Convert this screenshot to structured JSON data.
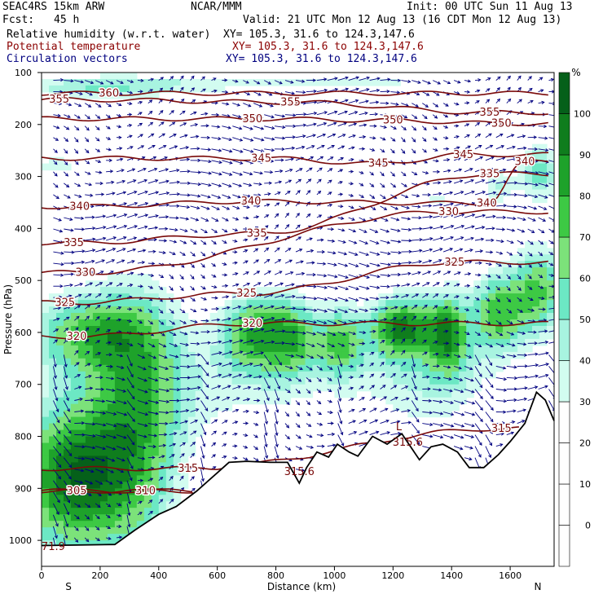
{
  "header": {
    "model": "SEAC4RS 15km ARW",
    "center": "NCAR/MMM",
    "init": "Init: 00 UTC Sun 11 Aug 13",
    "fcst_label": "Fcst:",
    "fcst_value": "45 h",
    "valid": "Valid: 21 UTC Mon 12 Aug 13 (16 CDT Mon 12 Aug 13)",
    "fields": [
      {
        "name": "Relative humidity (w.r.t. water)",
        "xy": "XY= 105.3, 31.6 to 124.3,147.6",
        "color": "#000000"
      },
      {
        "name": "Potential temperature",
        "xy": "XY= 105.3, 31.6 to 124.3,147.6",
        "color": "#8b0000"
      },
      {
        "name": "Circulation vectors",
        "xy": "XY= 105.3, 31.6 to 124.3,147.6",
        "color": "#000080"
      }
    ]
  },
  "chart_data": {
    "type": "heatmap",
    "xlabel": "Distance (km)",
    "ylabel": "Pressure (hPa)",
    "xlim": [
      0,
      1750
    ],
    "ylim": [
      1050,
      100
    ],
    "x_ticks": [
      0,
      200,
      400,
      600,
      800,
      1000,
      1200,
      1400,
      1600
    ],
    "y_ticks": [
      100,
      200,
      300,
      400,
      500,
      600,
      700,
      800,
      900,
      1000
    ],
    "x_end_labels": [
      "S",
      "N"
    ],
    "colorbar": {
      "unit": "%",
      "levels": [
        0,
        10,
        20,
        30,
        40,
        50,
        60,
        70,
        80,
        90,
        100
      ],
      "colors": [
        "#ffffff",
        "#ffffff",
        "#ffffff",
        "#ffffff",
        "#d2fcf0",
        "#a8f4e0",
        "#6ce8c4",
        "#7ce27a",
        "#3dc944",
        "#1ea22a",
        "#0f7d1d",
        "#05601a"
      ]
    },
    "theta_contours": [
      {
        "value": 305,
        "labels": [
          {
            "x": 120,
            "p": 905
          }
        ]
      },
      {
        "value": 310,
        "labels": [
          {
            "x": 355,
            "p": 905
          }
        ]
      },
      {
        "value": 315,
        "labels": [
          {
            "x": 500,
            "p": 862
          },
          {
            "x": 1570,
            "p": 785
          }
        ]
      },
      {
        "value": 320,
        "labels": [
          {
            "x": 120,
            "p": 608
          },
          {
            "x": 720,
            "p": 583
          }
        ]
      },
      {
        "value": 325,
        "labels": [
          {
            "x": 80,
            "p": 543
          },
          {
            "x": 700,
            "p": 525
          },
          {
            "x": 1410,
            "p": 465
          }
        ]
      },
      {
        "value": 330,
        "labels": [
          {
            "x": 150,
            "p": 485
          },
          {
            "x": 1390,
            "p": 368
          }
        ]
      },
      {
        "value": 335,
        "labels": [
          {
            "x": 110,
            "p": 428
          },
          {
            "x": 735,
            "p": 410
          },
          {
            "x": 1530,
            "p": 295
          }
        ]
      },
      {
        "value": 340,
        "labels": [
          {
            "x": 130,
            "p": 358
          },
          {
            "x": 715,
            "p": 348
          },
          {
            "x": 1520,
            "p": 352
          },
          {
            "x": 1650,
            "p": 272
          }
        ]
      },
      {
        "value": 345,
        "labels": [
          {
            "x": 750,
            "p": 265
          },
          {
            "x": 1150,
            "p": 275
          },
          {
            "x": 1440,
            "p": 258
          }
        ]
      },
      {
        "value": 350,
        "labels": [
          {
            "x": 720,
            "p": 189
          },
          {
            "x": 1200,
            "p": 192
          },
          {
            "x": 1570,
            "p": 198
          }
        ]
      },
      {
        "value": 355,
        "labels": [
          {
            "x": 60,
            "p": 152
          },
          {
            "x": 850,
            "p": 157
          },
          {
            "x": 1530,
            "p": 177
          }
        ]
      },
      {
        "value": 360,
        "labels": [
          {
            "x": 230,
            "p": 140
          }
        ]
      }
    ],
    "annotations": [
      {
        "text": "L",
        "x": 1220,
        "p": 782
      },
      {
        "text": "315.6",
        "x": 1250,
        "p": 812
      },
      {
        "text": "315.6",
        "x": 880,
        "p": 868
      },
      {
        "text": "71.9",
        "x": 40,
        "p": 1012
      }
    ],
    "terrain_pressure": [
      {
        "x": 0,
        "p": 1010
      },
      {
        "x": 250,
        "p": 1008
      },
      {
        "x": 320,
        "p": 980
      },
      {
        "x": 400,
        "p": 950
      },
      {
        "x": 460,
        "p": 935
      },
      {
        "x": 530,
        "p": 905
      },
      {
        "x": 600,
        "p": 870
      },
      {
        "x": 640,
        "p": 850
      },
      {
        "x": 700,
        "p": 848
      },
      {
        "x": 780,
        "p": 850
      },
      {
        "x": 840,
        "p": 850
      },
      {
        "x": 880,
        "p": 890
      },
      {
        "x": 905,
        "p": 860
      },
      {
        "x": 940,
        "p": 830
      },
      {
        "x": 980,
        "p": 840
      },
      {
        "x": 1010,
        "p": 815
      },
      {
        "x": 1050,
        "p": 830
      },
      {
        "x": 1080,
        "p": 838
      },
      {
        "x": 1130,
        "p": 800
      },
      {
        "x": 1180,
        "p": 815
      },
      {
        "x": 1230,
        "p": 795
      },
      {
        "x": 1290,
        "p": 845
      },
      {
        "x": 1330,
        "p": 820
      },
      {
        "x": 1370,
        "p": 815
      },
      {
        "x": 1420,
        "p": 830
      },
      {
        "x": 1460,
        "p": 860
      },
      {
        "x": 1510,
        "p": 860
      },
      {
        "x": 1560,
        "p": 835
      },
      {
        "x": 1600,
        "p": 810
      },
      {
        "x": 1650,
        "p": 775
      },
      {
        "x": 1690,
        "p": 715
      },
      {
        "x": 1720,
        "p": 730
      },
      {
        "x": 1750,
        "p": 770
      }
    ]
  }
}
